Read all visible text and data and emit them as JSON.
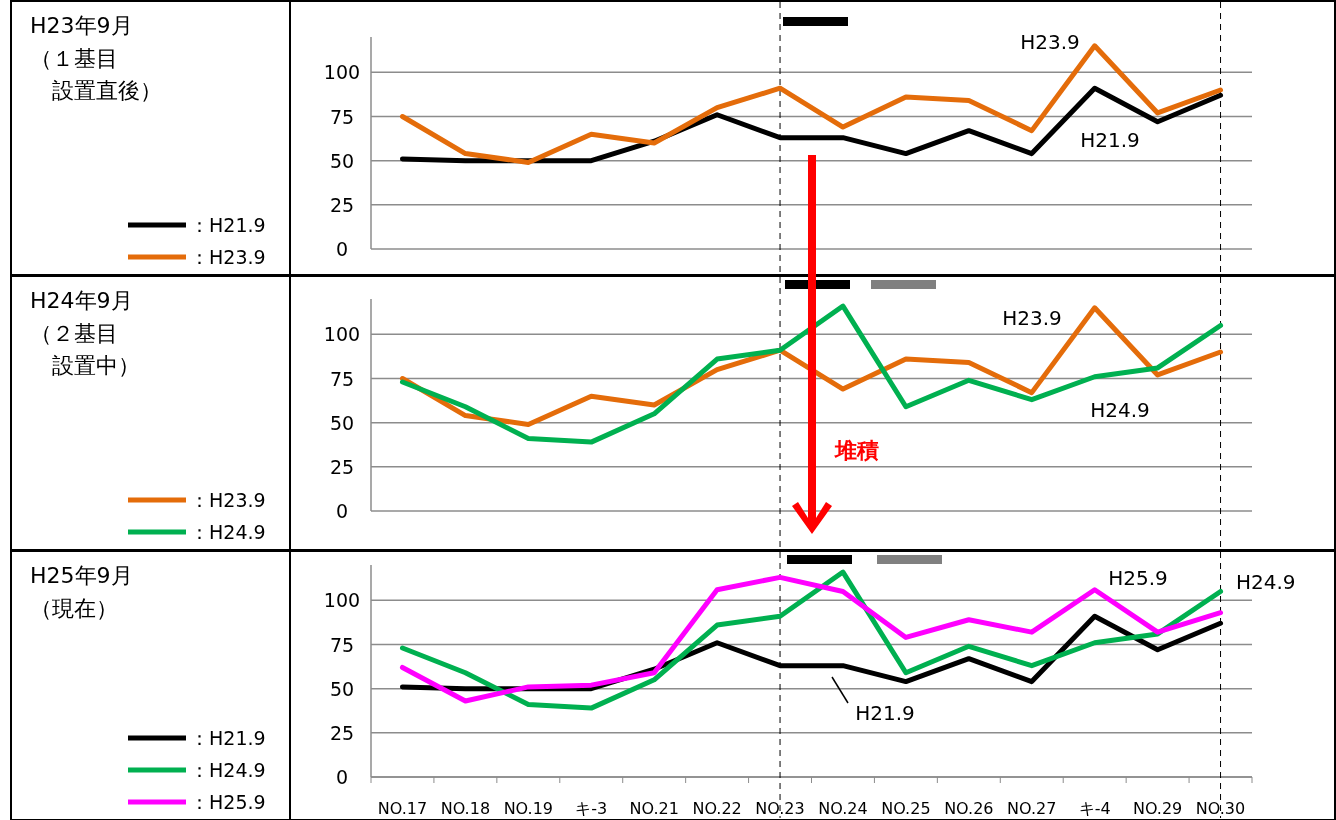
{
  "chart_data": [
    {
      "type": "line",
      "categories": [
        "NO.17",
        "NO.18",
        "NO.19",
        "キ-3",
        "NO.21",
        "NO.22",
        "NO.23",
        "NO.24",
        "NO.25",
        "NO.26",
        "NO.27",
        "キ-4",
        "NO.29",
        "NO.30"
      ],
      "series": [
        {
          "name": "：H21.9",
          "color": "#000000",
          "values": [
            51,
            50,
            50,
            50,
            61,
            76,
            63,
            63,
            54,
            67,
            54,
            91,
            72,
            87
          ]
        },
        {
          "name": "：H23.9",
          "color": "#e46c0a",
          "values": [
            75,
            54,
            49,
            65,
            60,
            80,
            91,
            69,
            86,
            84,
            67,
            115,
            77,
            90
          ]
        }
      ],
      "ylim": [
        0,
        120
      ],
      "yticks": [
        0,
        25,
        50,
        75,
        100
      ],
      "grid": "y",
      "legend": "left",
      "tick_labels": "y",
      "ref_lines": [
        {
          "axis": "x",
          "value": "NO.23",
          "line_style": "dashed"
        },
        {
          "axis": "x",
          "value": "NO.30",
          "line_style": "dashed"
        }
      ],
      "annotations": [
        "H23.9",
        "H21.9",
        "H23年9月",
        "（１基目",
        "設置直後）"
      ]
    },
    {
      "type": "line",
      "categories": [
        "NO.17",
        "NO.18",
        "NO.19",
        "キ-3",
        "NO.21",
        "NO.22",
        "NO.23",
        "NO.24",
        "NO.25",
        "NO.26",
        "NO.27",
        "キ-4",
        "NO.29",
        "NO.30"
      ],
      "series": [
        {
          "name": "：H23.9",
          "color": "#e46c0a",
          "values": [
            75,
            54,
            49,
            65,
            60,
            80,
            91,
            69,
            86,
            84,
            67,
            115,
            77,
            90
          ]
        },
        {
          "name": "：H24.9",
          "color": "#00b050",
          "values": [
            73,
            59,
            41,
            39,
            55,
            86,
            91,
            116,
            59,
            74,
            63,
            76,
            81,
            105
          ]
        }
      ],
      "ylim": [
        0,
        120
      ],
      "yticks": [
        0,
        25,
        50,
        75,
        100
      ],
      "grid": "y",
      "legend": "left",
      "tick_labels": "y",
      "ref_lines": [
        {
          "axis": "x",
          "value": "NO.23",
          "line_style": "dashed"
        },
        {
          "axis": "x",
          "value": "NO.30",
          "line_style": "dashed"
        }
      ],
      "annotations": [
        "堆積",
        "H23.9",
        "H24.9",
        "H24年9月",
        "（２基目",
        "設置中）"
      ]
    },
    {
      "type": "line",
      "categories": [
        "NO.17",
        "NO.18",
        "NO.19",
        "キ-3",
        "NO.21",
        "NO.22",
        "NO.23",
        "NO.24",
        "NO.25",
        "NO.26",
        "NO.27",
        "キ-4",
        "NO.29",
        "NO.30"
      ],
      "series": [
        {
          "name": "：H21.9",
          "color": "#000000",
          "values": [
            51,
            50,
            50,
            50,
            61,
            76,
            63,
            63,
            54,
            67,
            54,
            91,
            72,
            87
          ]
        },
        {
          "name": "：H24.9",
          "color": "#00b050",
          "values": [
            73,
            59,
            41,
            39,
            55,
            86,
            91,
            116,
            59,
            74,
            63,
            76,
            81,
            105
          ]
        },
        {
          "name": "：H25.9",
          "color": "#ff00ff",
          "values": [
            62,
            43,
            51,
            52,
            59,
            106,
            113,
            105,
            79,
            89,
            82,
            106,
            82,
            93
          ]
        }
      ],
      "ylim": [
        0,
        120
      ],
      "yticks": [
        0,
        25,
        50,
        75,
        100
      ],
      "grid": "y",
      "legend": "left",
      "ref_lines": [
        {
          "axis": "x",
          "value": "NO.23",
          "line_style": "dashed"
        },
        {
          "axis": "x",
          "value": "NO.30",
          "line_style": "dashed"
        }
      ],
      "annotations": [
        "H25.9",
        "H24.9",
        "H21.9",
        "H25年9月",
        "（現在）"
      ]
    }
  ]
}
